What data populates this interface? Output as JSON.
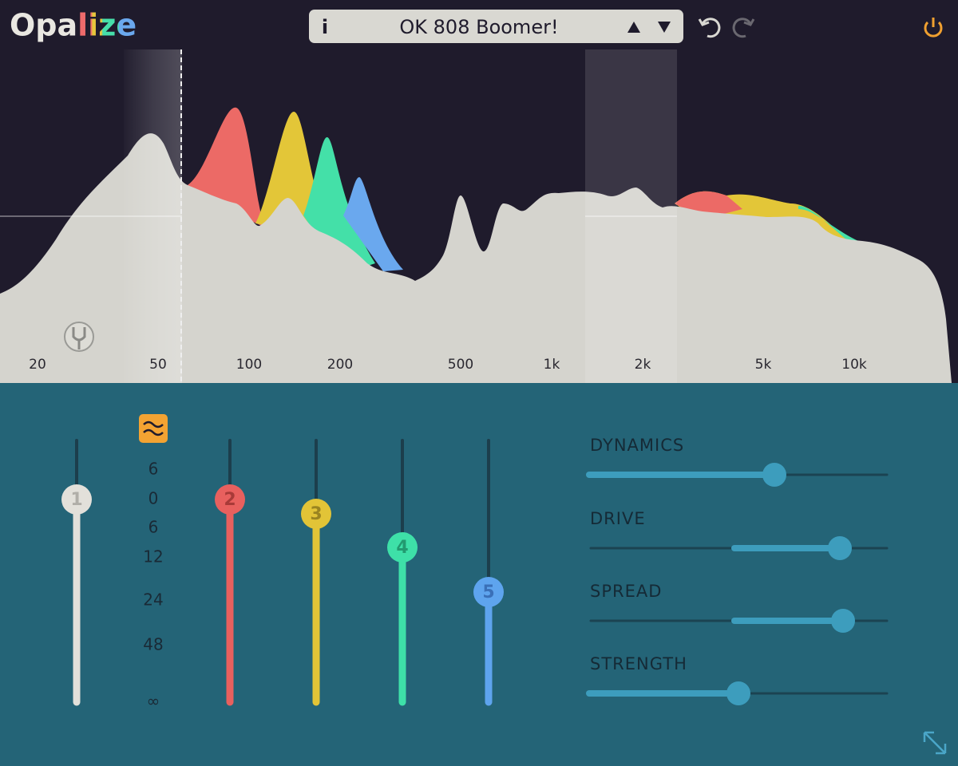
{
  "header": {
    "logo": "Opalize",
    "info": "i",
    "preset": "OK 808 Boomer!"
  },
  "spectrum": {
    "freq_labels": [
      "20",
      "50",
      "100",
      "200",
      "500",
      "1k",
      "2k",
      "5k",
      "10k"
    ]
  },
  "faders": {
    "bands": [
      "1",
      "2",
      "3",
      "4",
      "5"
    ],
    "scale": [
      "6",
      "0",
      "6",
      "12",
      "24",
      "48",
      "∞"
    ]
  },
  "controls": [
    "DYNAMICS",
    "DRIVE",
    "SPREAD",
    "STRENGTH"
  ]
}
